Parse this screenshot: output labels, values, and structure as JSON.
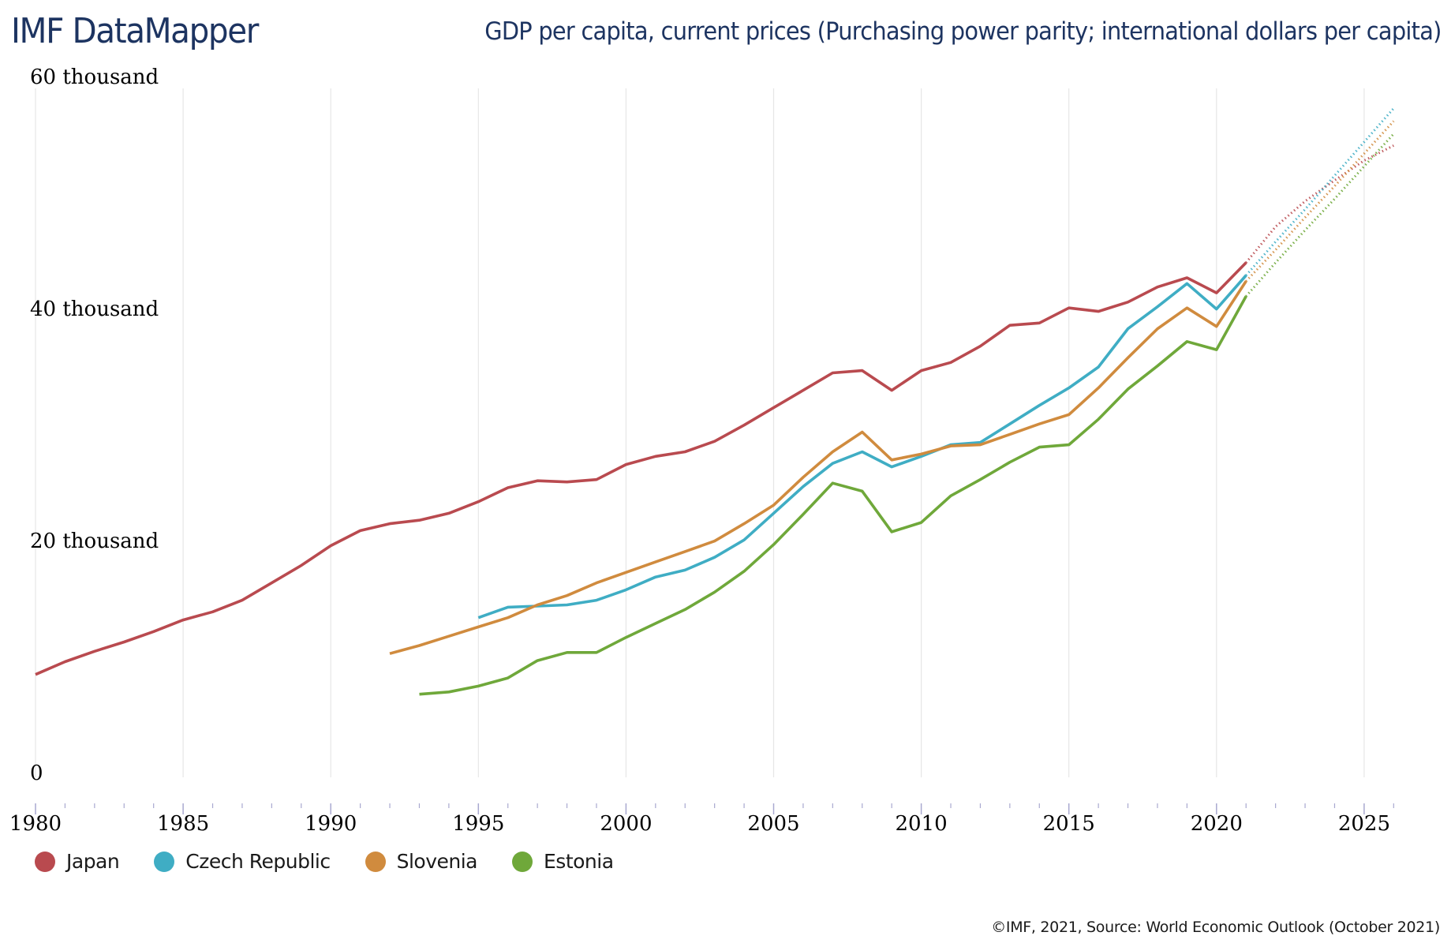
{
  "header": {
    "brand": "IMF DataMapper",
    "title": "GDP per capita, current prices (Purchasing power parity; international dollars per capita)"
  },
  "footer": {
    "credit": "©IMF, 2021, Source: World Economic Outlook (October 2021)"
  },
  "chart_data": {
    "type": "line",
    "title": "GDP per capita, current prices (Purchasing power parity; international dollars per capita)",
    "xlabel": "",
    "ylabel": "",
    "xlim": [
      1980,
      2026
    ],
    "ylim": [
      0,
      60000
    ],
    "grid": "vertical",
    "legend_position": "bottom-left",
    "y_ticks": [
      {
        "value": 0,
        "label": "0"
      },
      {
        "value": 20000,
        "label": "20 thousand"
      },
      {
        "value": 40000,
        "label": "40 thousand"
      },
      {
        "value": 60000,
        "label": "60 thousand"
      }
    ],
    "x_ticks": [
      {
        "value": 1980,
        "label": "1980"
      },
      {
        "value": 1985,
        "label": "1985"
      },
      {
        "value": 1990,
        "label": "1990"
      },
      {
        "value": 1995,
        "label": "1995"
      },
      {
        "value": 2000,
        "label": "2000"
      },
      {
        "value": 2005,
        "label": "2005"
      },
      {
        "value": 2010,
        "label": "2010"
      },
      {
        "value": 2015,
        "label": "2015"
      },
      {
        "value": 2020,
        "label": "2020"
      },
      {
        "value": 2025,
        "label": "2025"
      }
    ],
    "projection_start": 2021,
    "series": [
      {
        "name": "Japan",
        "color": "#b94a4f",
        "start_year": 1980,
        "values": [
          9000,
          10100,
          11000,
          11800,
          12700,
          13700,
          14400,
          15400,
          16900,
          18400,
          20100,
          21400,
          22000,
          22300,
          22900,
          23900,
          25100,
          25700,
          25600,
          25800,
          27100,
          27800,
          28200,
          29100,
          30500,
          32000,
          33500,
          35000,
          35200,
          33500,
          35200,
          35900,
          37300,
          39100,
          39300,
          40600,
          40300,
          41100,
          42400,
          43200,
          41900,
          44500,
          47600,
          49800,
          51600,
          53300,
          54600
        ]
      },
      {
        "name": "Czech Republic",
        "color": "#3fadc4",
        "start_year": 1995,
        "values": [
          13900,
          14800,
          14900,
          15000,
          15400,
          16300,
          17400,
          18000,
          19100,
          20600,
          22900,
          25200,
          27200,
          28200,
          26900,
          27800,
          28800,
          29000,
          30600,
          32200,
          33700,
          35500,
          38800,
          40700,
          42700,
          40500,
          43400,
          46300,
          49100,
          52000,
          54900,
          57800
        ]
      },
      {
        "name": "Slovenia",
        "color": "#d08b3e",
        "start_year": 1992,
        "values": [
          10800,
          11500,
          12300,
          13100,
          13900,
          15000,
          15800,
          16900,
          17800,
          18700,
          19600,
          20500,
          22000,
          23600,
          26000,
          28200,
          29900,
          27500,
          28000,
          28700,
          28800,
          29700,
          30600,
          31400,
          33700,
          36300,
          38800,
          40600,
          39000,
          42900,
          45600,
          48400,
          51100,
          53900,
          56700
        ]
      },
      {
        "name": "Estonia",
        "color": "#6fa83a",
        "start_year": 1993,
        "values": [
          7300,
          7500,
          8000,
          8700,
          10200,
          10900,
          10900,
          12200,
          13400,
          14600,
          16100,
          17900,
          20200,
          22800,
          25500,
          24800,
          21300,
          22100,
          24400,
          25800,
          27300,
          28600,
          28800,
          31000,
          33600,
          35600,
          37700,
          37000,
          41600,
          44500,
          47300,
          50000,
          52800,
          55600
        ]
      }
    ]
  }
}
